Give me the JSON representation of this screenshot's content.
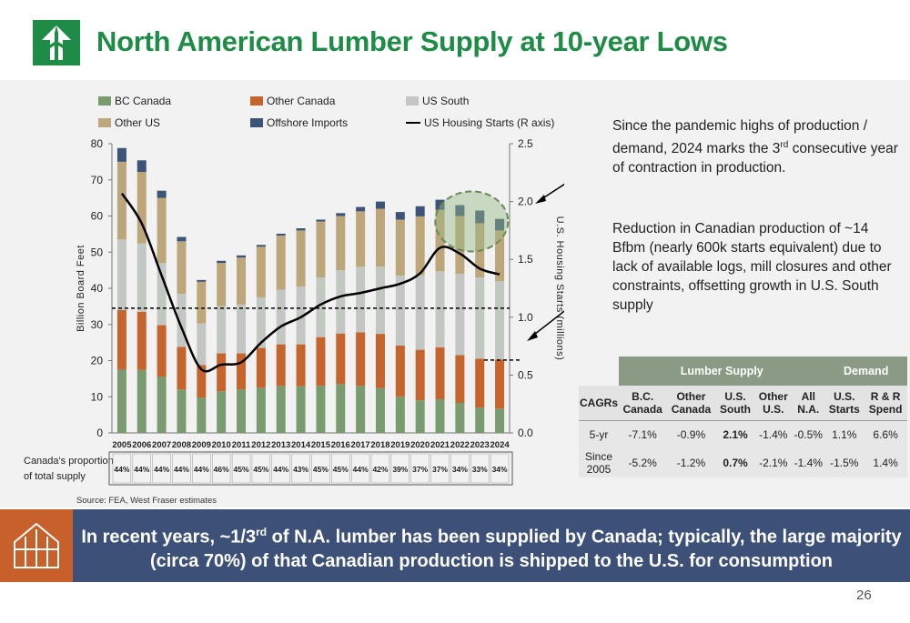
{
  "header": {
    "title": "North American Lumber Supply at 10-year Lows"
  },
  "colors": {
    "bc": "#7a9a70",
    "other_canada": "#c6642e",
    "us_south": "#c3c7c2",
    "other_us": "#bda679",
    "offshore": "#3e5378",
    "housing": "#000000",
    "title_green": "#1e8c46",
    "banner": "#3d5178",
    "accent_orange": "#c8602b"
  },
  "chart_data": {
    "type": "bar",
    "stacked": true,
    "categories": [
      "2005",
      "2006",
      "2007",
      "2008",
      "2009",
      "2010",
      "2011",
      "2012",
      "2013",
      "2014",
      "2015",
      "2016",
      "2017",
      "2018",
      "2019",
      "2020",
      "2021",
      "2022",
      "2023",
      "2024"
    ],
    "series": [
      {
        "name": "BC Canada",
        "values": [
          17.5,
          17.4,
          15.6,
          12.0,
          9.8,
          11.5,
          12.0,
          12.5,
          13.0,
          12.9,
          13.0,
          13.5,
          13.0,
          12.4,
          10.0,
          9.0,
          9.3,
          8.3,
          7.0,
          6.7
        ]
      },
      {
        "name": "Other Canada",
        "values": [
          16.5,
          16.1,
          14.2,
          11.8,
          9.0,
          10.5,
          10.0,
          11.0,
          11.5,
          11.6,
          13.5,
          14.0,
          14.8,
          15.0,
          14.2,
          14.0,
          14.4,
          13.2,
          13.5,
          13.6
        ]
      },
      {
        "name": "US South",
        "values": [
          19.5,
          18.9,
          17.2,
          14.7,
          11.5,
          13.0,
          13.5,
          14.0,
          15.1,
          16.0,
          16.5,
          17.5,
          18.2,
          18.6,
          19.3,
          20.7,
          21.0,
          22.5,
          22.5,
          21.7
        ]
      },
      {
        "name": "Other US",
        "values": [
          21.5,
          19.8,
          18.0,
          14.5,
          11.5,
          12.0,
          13.0,
          14.0,
          15.0,
          15.5,
          15.5,
          15.0,
          15.3,
          16.0,
          15.5,
          16.2,
          17.0,
          16.0,
          15.0,
          14.0
        ]
      },
      {
        "name": "Offshore Imports",
        "values": [
          3.8,
          3.2,
          2.0,
          1.2,
          0.5,
          0.6,
          0.6,
          0.5,
          0.5,
          0.6,
          0.5,
          0.8,
          1.2,
          2.0,
          2.1,
          2.8,
          2.8,
          3.0,
          3.5,
          3.2
        ]
      }
    ],
    "line_series": {
      "name": "US Housing Starts (R axis)",
      "values": [
        2.07,
        1.81,
        1.36,
        0.91,
        0.55,
        0.59,
        0.61,
        0.78,
        0.92,
        1.0,
        1.11,
        1.18,
        1.21,
        1.25,
        1.29,
        1.38,
        1.6,
        1.55,
        1.42,
        1.37
      ]
    },
    "ylim": [
      0,
      80
    ],
    "yticks": [
      "0",
      "10",
      "20",
      "30",
      "40",
      "50",
      "60",
      "70",
      "80"
    ],
    "ylabel": "Billion Board Feet",
    "y2lim": [
      0,
      2.5
    ],
    "y2ticks": [
      "0.0",
      "0.5",
      "1.0",
      "1.5",
      "2.0",
      "2.5"
    ],
    "y2label": "U.S. Housing Starts (millions)",
    "reference_lines": {
      "left_axis": 34.5,
      "right_axis": 0.63
    },
    "legend_position": "top",
    "canada_proportion": {
      "label": "Canada's proportion of total supply",
      "values": [
        "44%",
        "44%",
        "44%",
        "44%",
        "44%",
        "46%",
        "45%",
        "45%",
        "44%",
        "43%",
        "45%",
        "45%",
        "44%",
        "42%",
        "39%",
        "37%",
        "37%",
        "34%",
        "33%",
        "34%"
      ]
    }
  },
  "notes": {
    "note1_a": "Since the pandemic highs of production / demand, 2024 marks the 3",
    "note1_sup": "rd",
    "note1_b": " consecutive year of contraction in production.",
    "note2": "Reduction in Canadian production of ~14 Bfbm (nearly 600k starts equivalent) due to lack of available logs, mill closures and other constraints, offsetting growth in U.S. South supply"
  },
  "table": {
    "group_lumber": "Lumber Supply",
    "group_demand": "Demand",
    "corner": "CAGRs",
    "columns": [
      "B.C. Canada",
      "Other Canada",
      "U.S. South",
      "Other U.S.",
      "All N.A.",
      "U.S. Starts",
      "R & R Spend"
    ],
    "rows": [
      {
        "label": "5-yr",
        "values": [
          "-7.1%",
          "-0.9%",
          "2.1%",
          "-1.4%",
          "-0.5%",
          "1.1%",
          "6.6%"
        ]
      },
      {
        "label": "Since 2005",
        "values": [
          "-5.2%",
          "-1.2%",
          "0.7%",
          "-2.1%",
          "-1.4%",
          "-1.5%",
          "1.4%"
        ]
      }
    ]
  },
  "source": "Source: FEA, West Fraser estimates",
  "banner": {
    "text_a": "In recent years, ~1/3",
    "text_sup": "rd",
    "text_b": " of N.A. lumber has been supplied by Canada; typically, the large majority (circa 70%) of that Canadian production is shipped to the U.S. for consumption"
  },
  "page_number": "26"
}
